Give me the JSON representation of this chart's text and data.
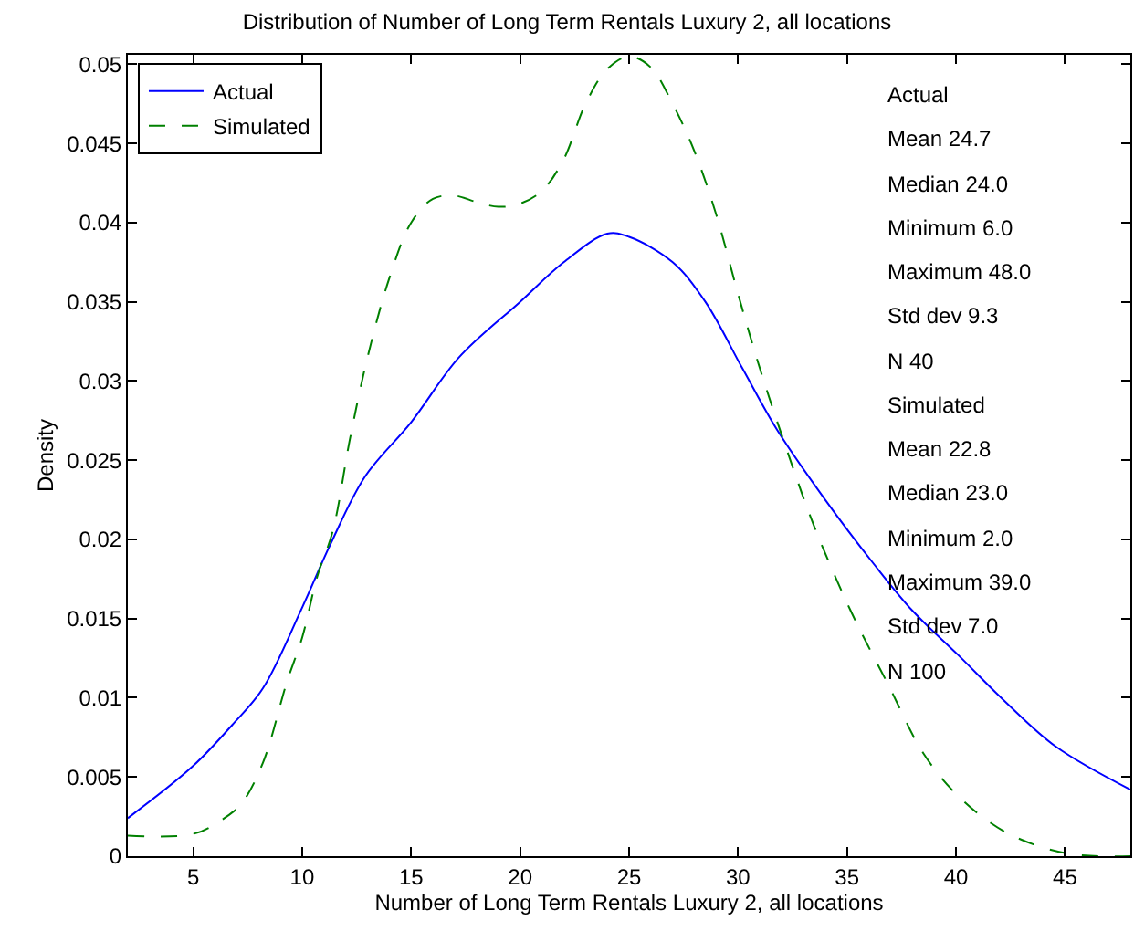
{
  "chart_data": {
    "type": "line",
    "title": "Distribution of Number of Long Term Rentals Luxury 2, all locations",
    "xlabel": "Number of Long Term Rentals Luxury 2, all locations",
    "ylabel": "Density",
    "xlim": [
      2,
      48
    ],
    "xticks": [
      5,
      10,
      15,
      20,
      25,
      30,
      35,
      40,
      45
    ],
    "ylim": [
      0,
      0.0506
    ],
    "yticks": [
      0,
      0.005,
      0.01,
      0.015,
      0.02,
      0.025,
      0.03,
      0.035,
      0.04,
      0.045,
      0.05
    ],
    "legend": "top left",
    "series": [
      {
        "name": "Actual",
        "color": "#0000ff",
        "line_style": "solid",
        "x": [
          2,
          5,
          6.8,
          8.2,
          10,
          11.3,
          12.9,
          15,
          17.2,
          20,
          22,
          24,
          25,
          27,
          28.5,
          30.2,
          31.8,
          34,
          36.2,
          38,
          40.1,
          42.3,
          44.6,
          48
        ],
        "values": [
          0.0024,
          0.0057,
          0.0083,
          0.0106,
          0.0157,
          0.0197,
          0.024,
          0.0274,
          0.0315,
          0.035,
          0.0375,
          0.0393,
          0.0391,
          0.0375,
          0.035,
          0.0308,
          0.0269,
          0.0225,
          0.0185,
          0.0155,
          0.0127,
          0.0097,
          0.0069,
          0.0042
        ]
      },
      {
        "name": "Simulated",
        "color": "#008000",
        "line_style": "dashed",
        "x": [
          2,
          5,
          6.2,
          7.2,
          8.2,
          9.3,
          10,
          10.7,
          11.4,
          12.2,
          13,
          14,
          15,
          16,
          17,
          18,
          19,
          20,
          21,
          22,
          23,
          24,
          25,
          26,
          27,
          28,
          29,
          30,
          31,
          32.2,
          33.5,
          35.2,
          36.9,
          38.5,
          40.1,
          42.3,
          45,
          48
        ],
        "values": [
          0.0013,
          0.0014,
          0.0022,
          0.0033,
          0.0059,
          0.011,
          0.0138,
          0.0177,
          0.0205,
          0.0264,
          0.0315,
          0.0365,
          0.04,
          0.0415,
          0.0417,
          0.0413,
          0.041,
          0.0412,
          0.042,
          0.044,
          0.0475,
          0.0497,
          0.0505,
          0.0498,
          0.0475,
          0.0445,
          0.0405,
          0.0355,
          0.0308,
          0.0258,
          0.0208,
          0.0154,
          0.0108,
          0.0065,
          0.0038,
          0.0015,
          0.0002,
          0
        ]
      }
    ],
    "annotations": [
      "Actual",
      "Mean 24.7",
      "Median 24.0",
      "Minimum 6.0",
      "Maximum 48.0",
      "Std dev 9.3",
      "N 40",
      "Simulated",
      "Mean 22.8",
      "Median 23.0",
      "Minimum 2.0",
      "Maximum 39.0",
      "Std dev 7.0",
      "N 100"
    ]
  }
}
